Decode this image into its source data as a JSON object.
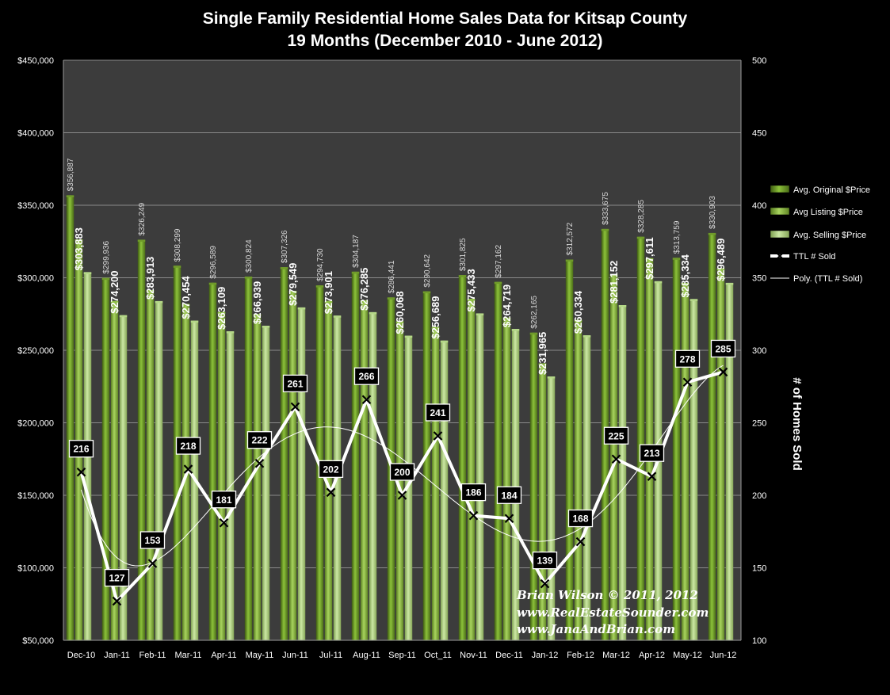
{
  "chart_data": {
    "type": "bar",
    "title": "Single Family Residential Home Sales Data for Kitsap County",
    "subtitle": "19 Months (December  2010 - June 2012)",
    "categories": [
      "Dec-10",
      "Jan-11",
      "Feb-11",
      "Mar-11",
      "Apr-11",
      "May-11",
      "Jun-11",
      "Jul-11",
      "Aug-11",
      "Sep-11",
      "Oct_11",
      "Nov-11",
      "Dec-11",
      "Jan-12",
      "Feb-12",
      "Mar-12",
      "Apr-12",
      "May-12",
      "Jun-12"
    ],
    "series": [
      {
        "name": "Avg. Original $Price",
        "color": "#6f9a2a",
        "values": [
          356887,
          299936,
          326249,
          308299,
          296589,
          300824,
          307326,
          294730,
          304187,
          286441,
          290642,
          301825,
          297162,
          262165,
          312572,
          333675,
          328285,
          313759,
          330903
        ],
        "labels": [
          "$356,887",
          "$299,936",
          "$326,249",
          "$308,299",
          "$296,589",
          "$300,824",
          "$307,326",
          "$294,730",
          "$304,187",
          "$286,441",
          "$290,642",
          "$301,825",
          "$297,162",
          "$262,165",
          "$312,572",
          "$333,675",
          "$328,285",
          "$313,759",
          "$330,903"
        ]
      },
      {
        "name": "Avg Listing $Price",
        "color": "#8fbf45",
        "values": [
          326500,
          284000,
          291500,
          282000,
          276500,
          275000,
          291000,
          284000,
          284500,
          270000,
          266000,
          285500,
          272500,
          241000,
          271000,
          302500,
          313500,
          296500,
          306500
        ]
      },
      {
        "name": "Avg. Selling $Price",
        "color": "#b5d888",
        "values": [
          303883,
          274200,
          283913,
          270454,
          263109,
          266939,
          279549,
          273901,
          276285,
          260068,
          256689,
          275433,
          264719,
          231965,
          260334,
          281152,
          297611,
          285334,
          296489
        ],
        "labels": [
          "$303,883",
          "$274,200",
          "$283,913",
          "$270,454",
          "$263,109",
          "$266,939",
          "$279,549",
          "$273,901",
          "$276,285",
          "$260,068",
          "$256,689",
          "$275,433",
          "$264,719",
          "$231,965",
          "$260,334",
          "$281,152",
          "$297,611",
          "$285,334",
          "$296,489"
        ]
      },
      {
        "name": "TTL # Sold",
        "axis": "right",
        "values": [
          216,
          127,
          153,
          218,
          181,
          222,
          261,
          202,
          266,
          200,
          241,
          186,
          184,
          139,
          168,
          225,
          213,
          278,
          285
        ]
      },
      {
        "name": "Poly. (TTL # Sold)",
        "axis": "right",
        "trendline": "polynomial"
      }
    ],
    "y_left": {
      "min": 50000,
      "max": 450000,
      "step": 50000,
      "ticks": [
        "$50,000",
        "$100,000",
        "$150,000",
        "$200,000",
        "$250,000",
        "$300,000",
        "$350,000",
        "$400,000",
        "$450,000"
      ]
    },
    "y_right": {
      "min": 100,
      "max": 500,
      "step": 50,
      "label": "# of Homes Sold",
      "ticks": [
        "100",
        "150",
        "200",
        "250",
        "300",
        "350",
        "400",
        "450",
        "500"
      ]
    },
    "legend": "right",
    "grid": true,
    "plot_background": "#3c3c3c"
  },
  "watermark": {
    "line1": "Brian Wilson  © 2011, 2012",
    "line2": "www.RealEstateSounder.com",
    "line3": "www.JanaAndBrian.com"
  }
}
